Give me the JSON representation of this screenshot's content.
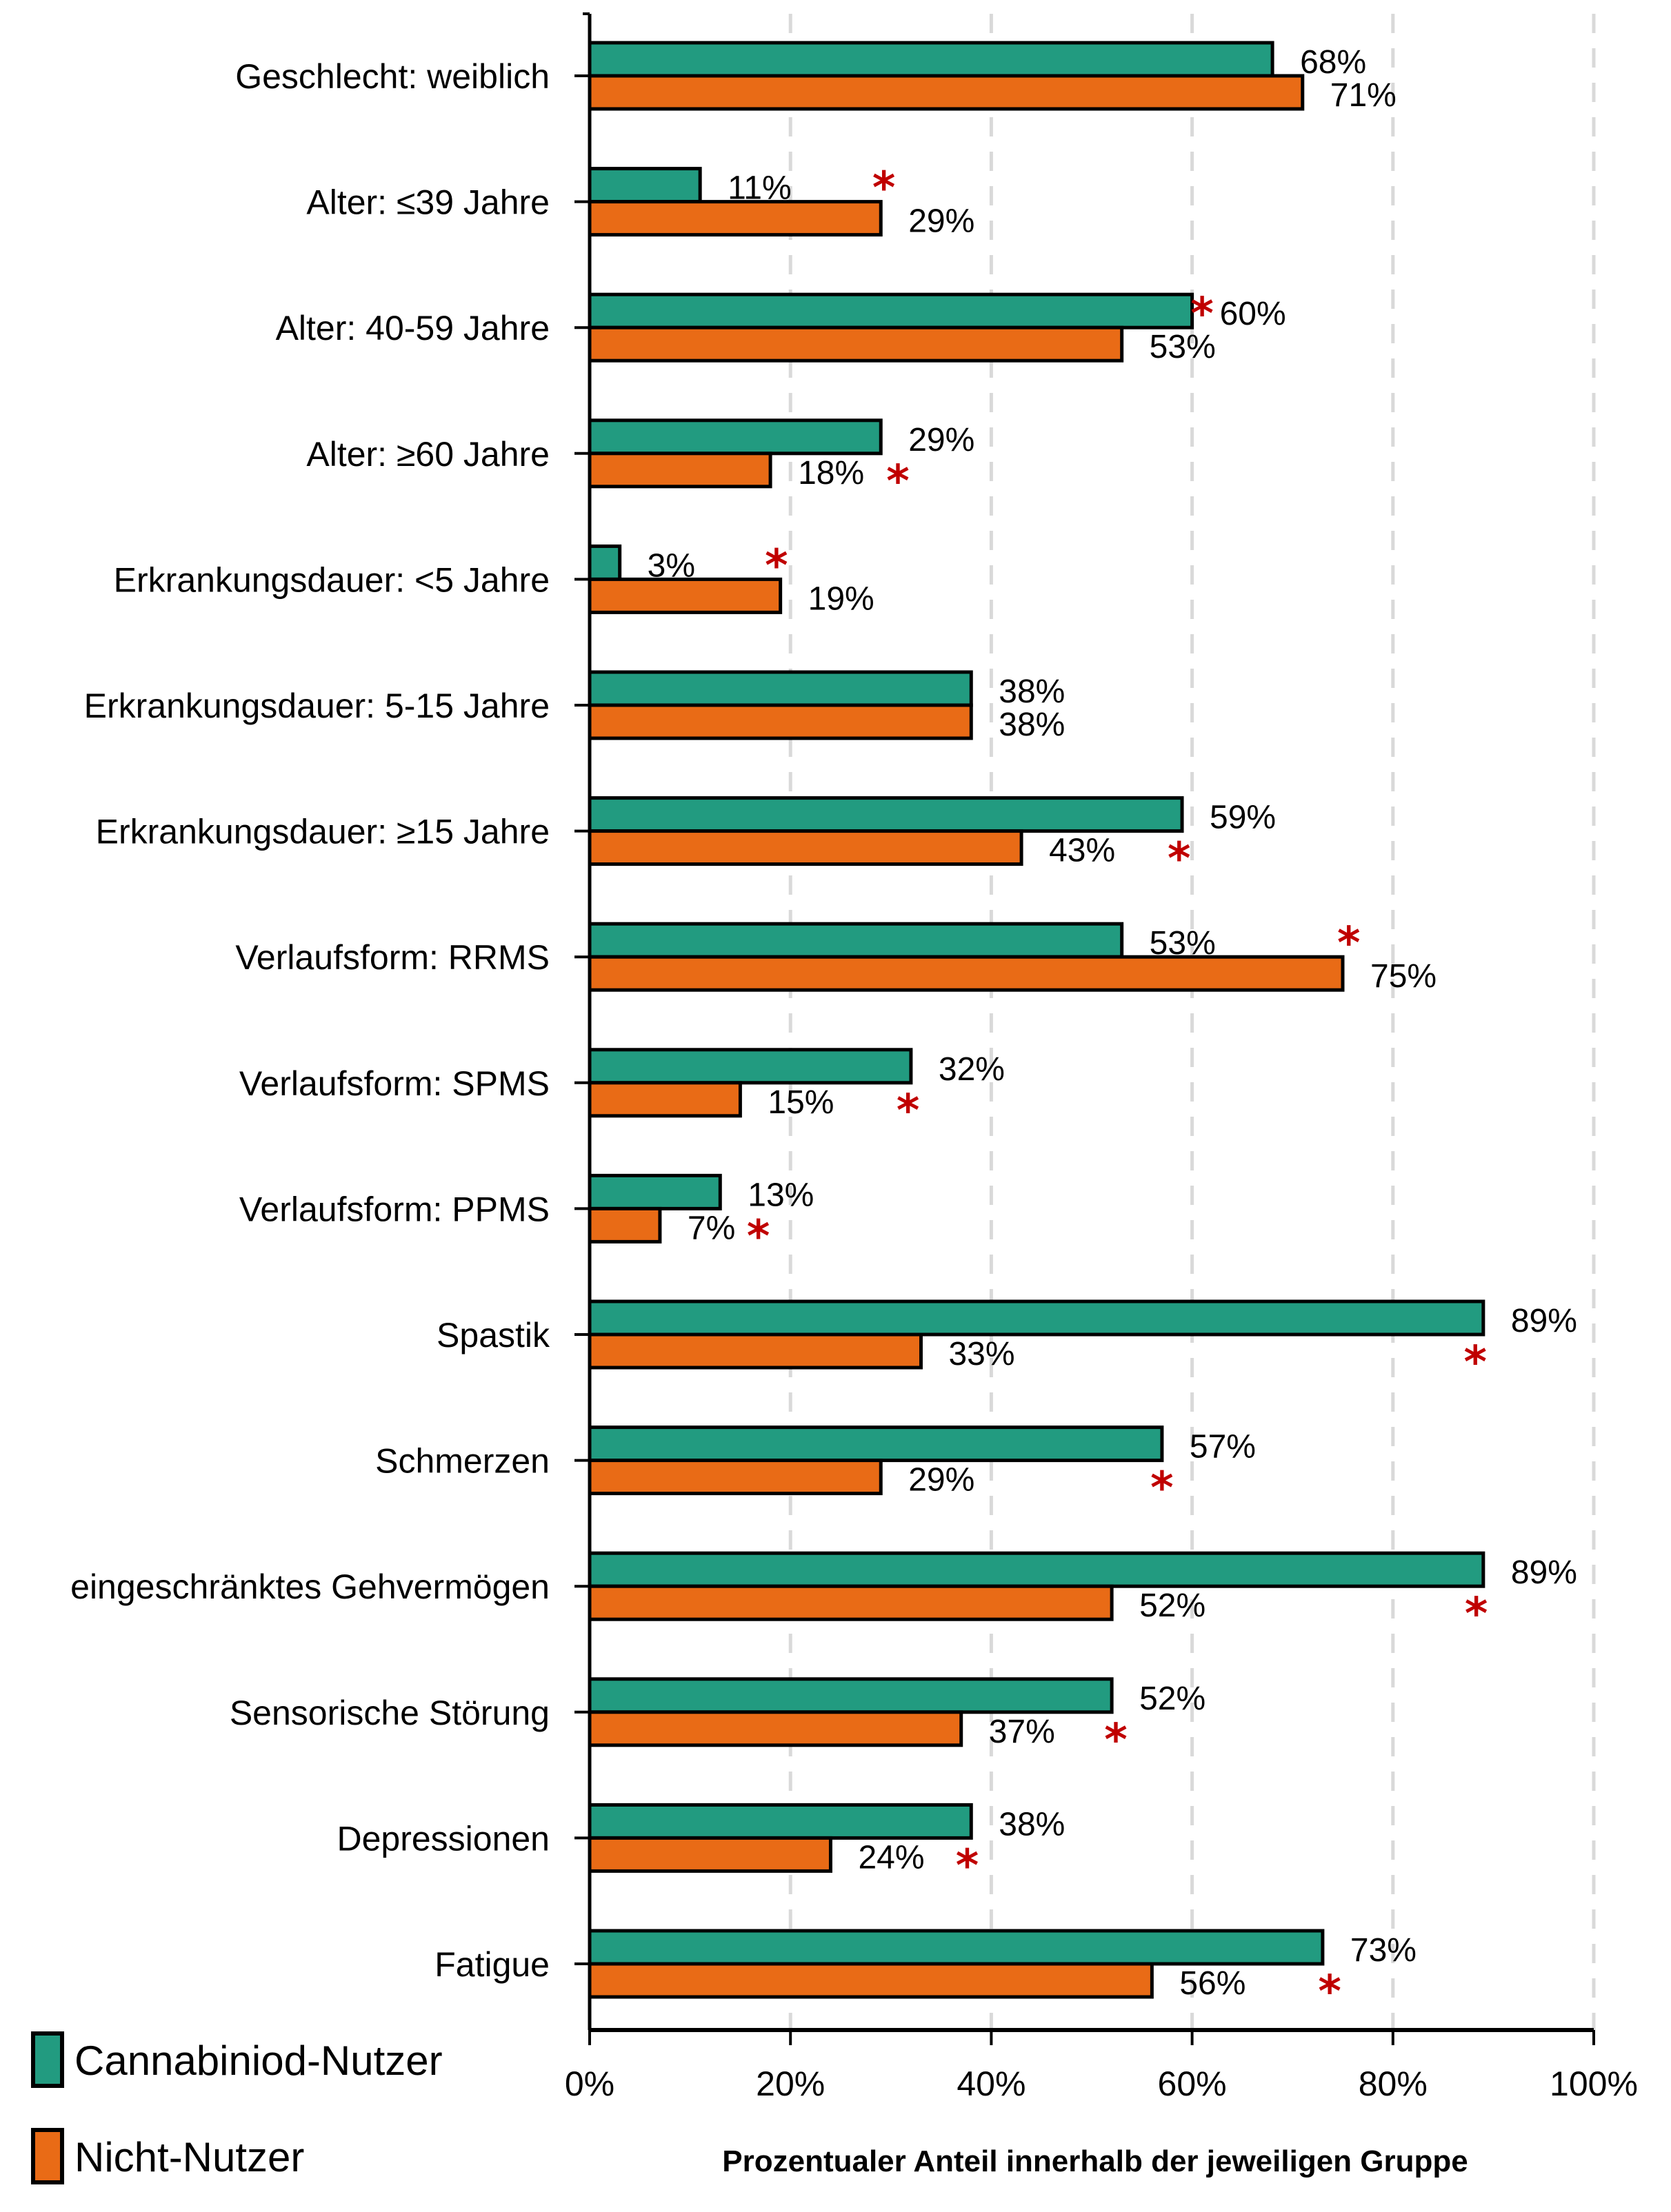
{
  "chart_data": {
    "type": "bar",
    "orientation": "horizontal",
    "title": "",
    "xlabel": "Prozentualer Anteil innerhalb der jeweiligen Gruppe",
    "ylabel": "",
    "xlim": [
      0,
      100
    ],
    "x_ticks": [
      "0%",
      "20%",
      "40%",
      "60%",
      "80%",
      "100%"
    ],
    "grid": "vertical dashed",
    "legend_position": "bottom-left",
    "categories": [
      "Geschlecht: weiblich",
      "Alter: ≤39 Jahre",
      "Alter: 40-59 Jahre",
      "Alter: ≥60 Jahre",
      "Erkrankungsdauer: <5 Jahre",
      "Erkrankungsdauer: 5-15 Jahre",
      "Erkrankungsdauer: ≥15 Jahre",
      "Verlaufsform: RRMS",
      "Verlaufsform: SPMS",
      "Verlaufsform: PPMS",
      "Spastik",
      "Schmerzen",
      "eingeschränktes Gehvermögen",
      "Sensorische Störung",
      "Depressionen",
      "Fatigue"
    ],
    "series": [
      {
        "name": "Cannabiniod-Nutzer",
        "color": "#229B80",
        "values": [
          68,
          11,
          60,
          29,
          3,
          38,
          59,
          53,
          32,
          13,
          89,
          57,
          89,
          52,
          38,
          73
        ],
        "labels": [
          "68%",
          "11%",
          "60%",
          "29%",
          "3%",
          "38%",
          "59%",
          "53%",
          "32%",
          "13%",
          "89%",
          "57%",
          "89%",
          "52%",
          "38%",
          "73%"
        ]
      },
      {
        "name": "Nicht-Nutzer",
        "color": "#E96B16",
        "values": [
          71,
          29,
          53,
          18,
          19,
          38,
          43,
          75,
          15,
          7,
          33,
          29,
          52,
          37,
          24,
          56
        ],
        "labels": [
          "71%",
          "29%",
          "53%",
          "18%",
          "19%",
          "38%",
          "43%",
          "75%",
          "15%",
          "7%",
          "33%",
          "29%",
          "52%",
          "37%",
          "24%",
          "56%"
        ]
      }
    ],
    "significance_marker": "*",
    "significance_color": "#C00000",
    "significant_categories": [
      {
        "category": "Alter: ≤39 Jahre",
        "at_percent": 29.3,
        "row": "upper"
      },
      {
        "category": "Alter: 40-59 Jahre",
        "at_percent": 61,
        "row": "upper"
      },
      {
        "category": "Alter: ≥60 Jahre",
        "at_percent": 30.7,
        "row": "lower"
      },
      {
        "category": "Erkrankungsdauer: <5 Jahre",
        "at_percent": 18.6,
        "row": "upper"
      },
      {
        "category": "Erkrankungsdauer: ≥15 Jahre",
        "at_percent": 58.7,
        "row": "lower"
      },
      {
        "category": "Verlaufsform: RRMS",
        "at_percent": 75.6,
        "row": "upper"
      },
      {
        "category": "Verlaufsform: SPMS",
        "at_percent": 31.7,
        "row": "lower"
      },
      {
        "category": "Verlaufsform: PPMS",
        "at_percent": 16.8,
        "row": "lower"
      },
      {
        "category": "Spastik",
        "at_percent": 88.2,
        "row": "lower"
      },
      {
        "category": "Schmerzen",
        "at_percent": 57,
        "row": "lower"
      },
      {
        "category": "eingeschränktes Gehvermögen",
        "at_percent": 88.3,
        "row": "lower"
      },
      {
        "category": "Sensorische Störung",
        "at_percent": 52.4,
        "row": "lower"
      },
      {
        "category": "Depressionen",
        "at_percent": 37.6,
        "row": "lower"
      },
      {
        "category": "Fatigue",
        "at_percent": 73.7,
        "row": "lower"
      }
    ]
  },
  "legend": {
    "items": [
      {
        "label": "Cannabiniod-Nutzer",
        "color": "#229B80"
      },
      {
        "label": "Nicht-Nutzer",
        "color": "#E96B16"
      }
    ]
  }
}
